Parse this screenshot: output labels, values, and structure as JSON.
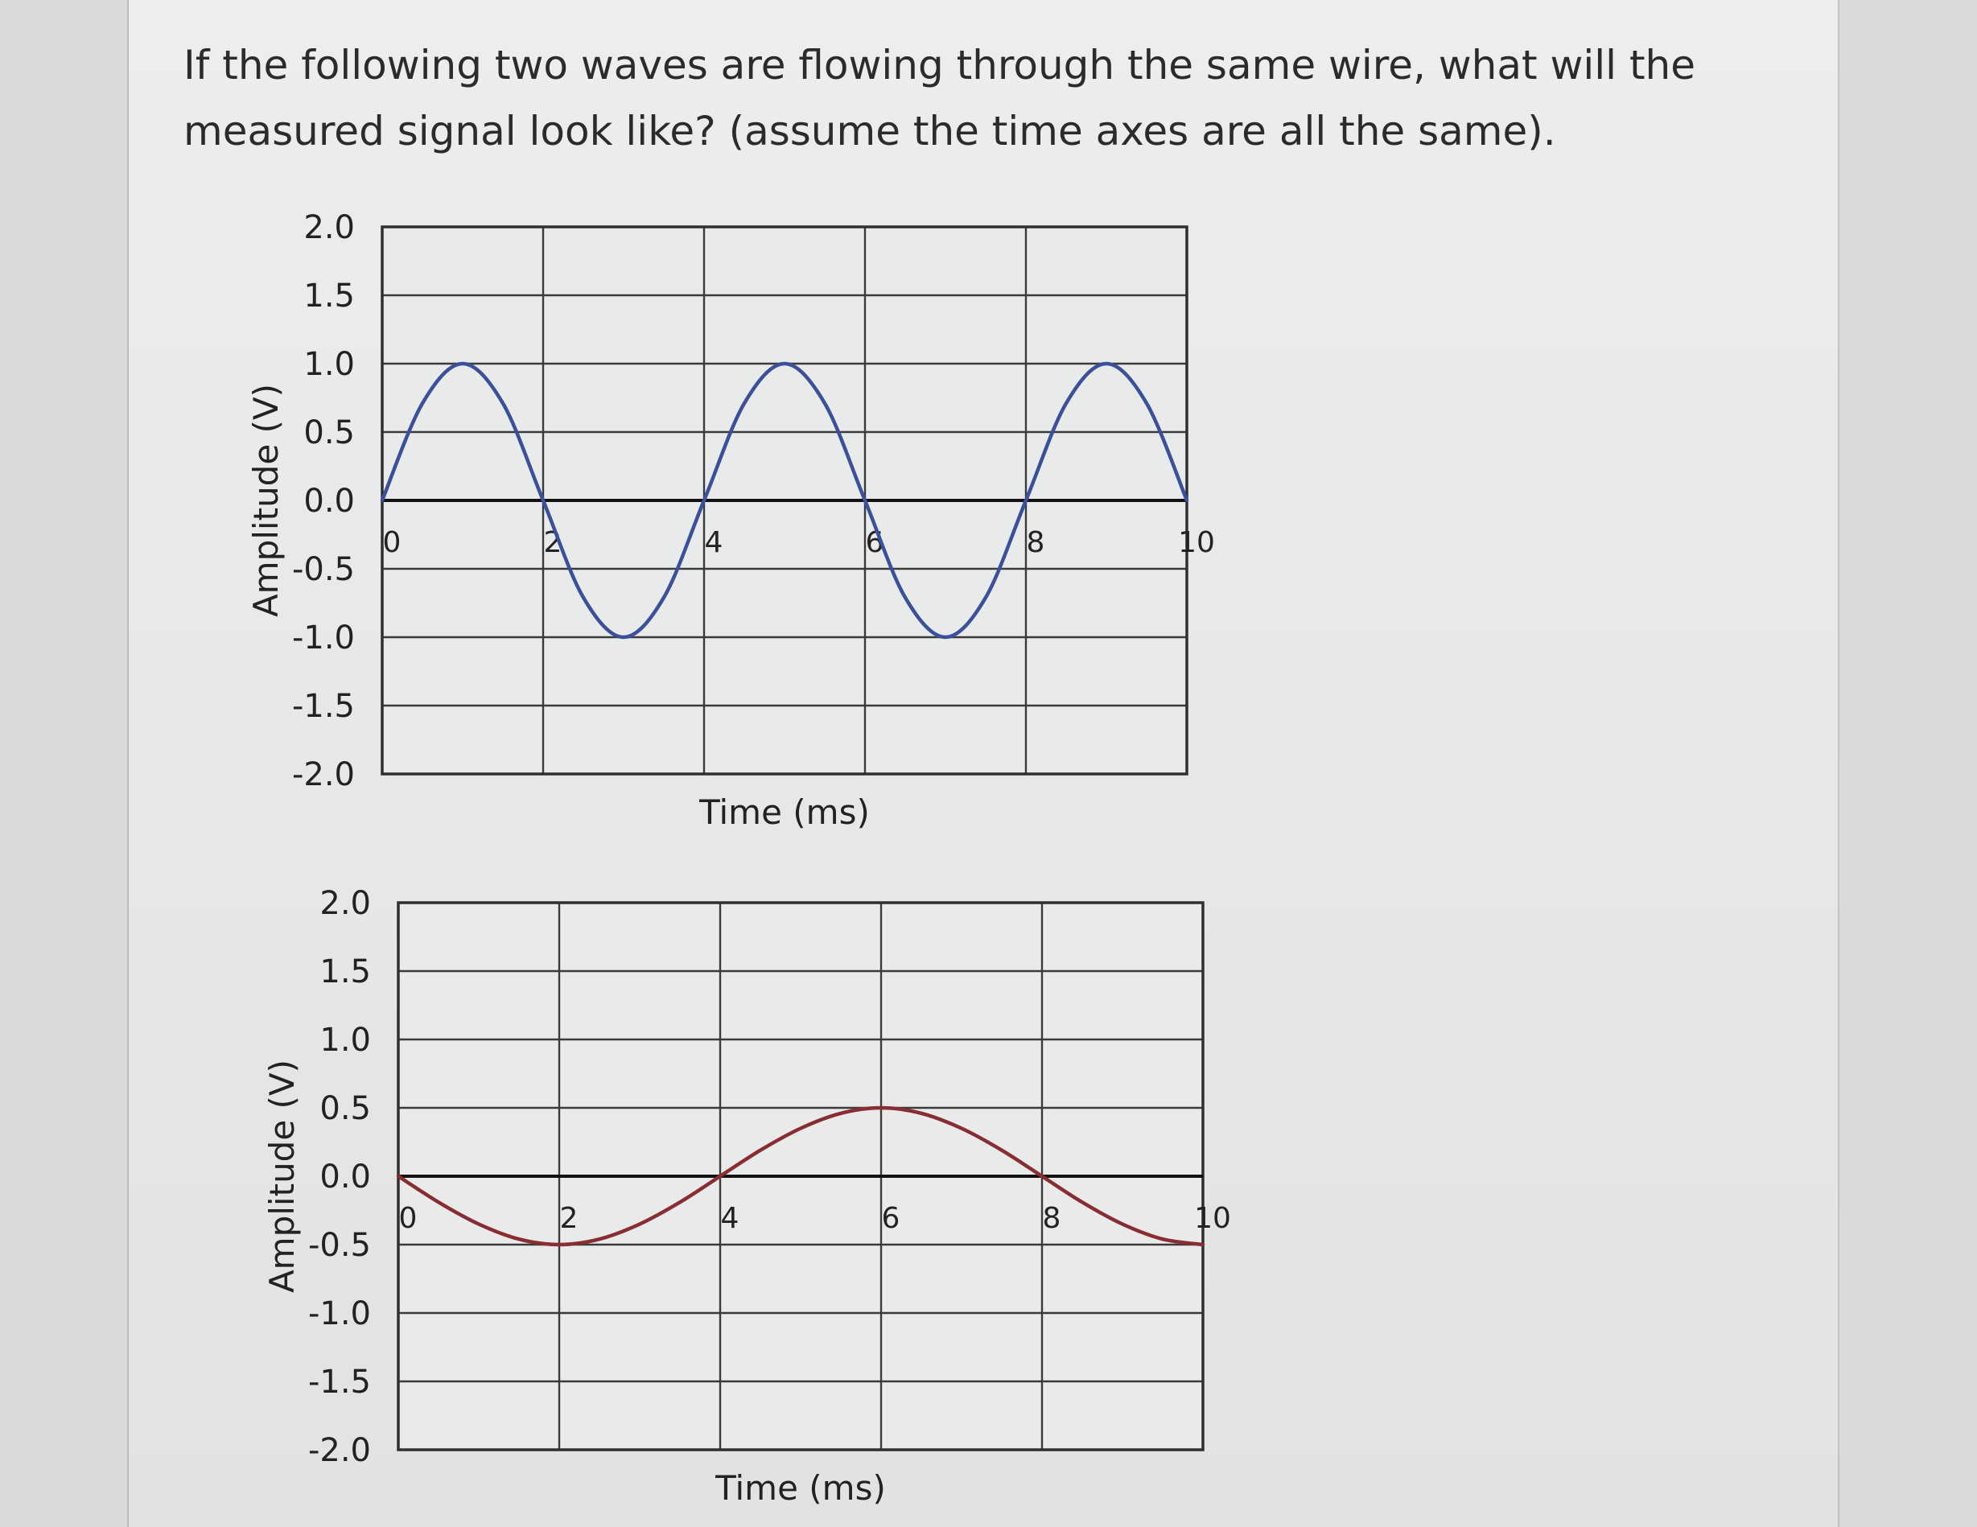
{
  "question": {
    "text": "If the following two waves are flowing through the same wire, what will the measured signal look like? (assume the time axes are all the same)."
  },
  "chart_data": [
    {
      "type": "line",
      "xlabel": "Time (ms)",
      "ylabel": "Amplitude (V)",
      "xlim": [
        0,
        10
      ],
      "ylim": [
        -2.0,
        2.0
      ],
      "x_ticks": [
        "0",
        "2",
        "4",
        "6",
        "8",
        "10"
      ],
      "y_ticks": [
        "2.0",
        "1.5",
        "1.0",
        "0.5",
        "0.0",
        "-0.5",
        "-1.0",
        "-1.5",
        "-2.0"
      ],
      "grid": true,
      "series": [
        {
          "color": "#3b4f9a",
          "x": [
            0,
            0.5,
            1,
            1.5,
            2,
            2.5,
            3,
            3.5,
            4,
            4.5,
            5,
            5.5,
            6,
            6.5,
            7,
            7.5,
            8,
            8.5,
            9,
            9.5,
            10
          ],
          "y": [
            0,
            0.71,
            1.0,
            0.71,
            0,
            -0.71,
            -1.0,
            -0.71,
            0,
            0.71,
            1.0,
            0.71,
            0,
            -0.71,
            -1.0,
            -0.71,
            0,
            0.71,
            1.0,
            0.71,
            0
          ]
        }
      ]
    },
    {
      "type": "line",
      "xlabel": "Time (ms)",
      "ylabel": "Amplitude (V)",
      "xlim": [
        0,
        10
      ],
      "ylim": [
        -2.0,
        2.0
      ],
      "x_ticks": [
        "0",
        "2",
        "4",
        "6",
        "8",
        "10"
      ],
      "y_ticks": [
        "2.0",
        "1.5",
        "1.0",
        "0.5",
        "0.0",
        "-0.5",
        "-1.0",
        "-1.5",
        "-2.0"
      ],
      "grid": true,
      "series": [
        {
          "color": "#8a2d33",
          "x": [
            0,
            0.5,
            1,
            1.5,
            2,
            2.5,
            3,
            3.5,
            4,
            4.5,
            5,
            5.5,
            6,
            6.5,
            7,
            7.5,
            8,
            8.5,
            9,
            9.5,
            10
          ],
          "y": [
            0,
            -0.19,
            -0.35,
            -0.46,
            -0.5,
            -0.46,
            -0.35,
            -0.19,
            0,
            0.19,
            0.35,
            0.46,
            0.5,
            0.46,
            0.35,
            0.19,
            0,
            -0.19,
            -0.35,
            -0.46,
            -0.5
          ]
        }
      ]
    }
  ]
}
